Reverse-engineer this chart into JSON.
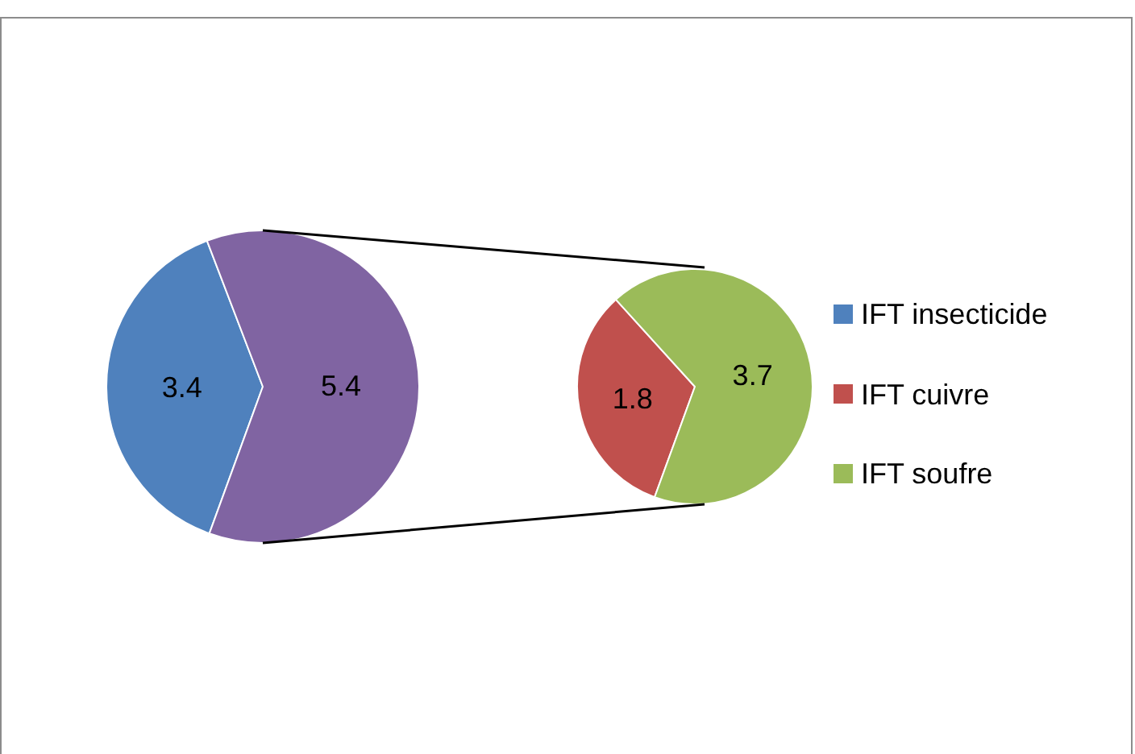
{
  "chart_data": [
    {
      "type": "pie",
      "categories": [
        "IFT insecticide",
        null
      ],
      "values": [
        3.4,
        5.4
      ],
      "colors": [
        "#4f81bd",
        "#8064a2"
      ],
      "data_labels": true,
      "legend": "right"
    },
    {
      "type": "pie",
      "categories": [
        "IFT cuivre",
        "IFT soufre"
      ],
      "values": [
        1.8,
        3.7
      ],
      "colors": [
        "#c0504d",
        "#9bbb59"
      ],
      "data_labels": true,
      "legend": "right"
    }
  ]
}
